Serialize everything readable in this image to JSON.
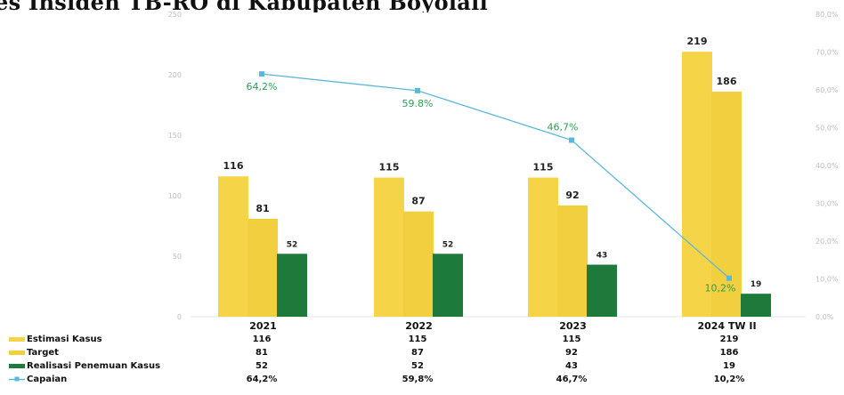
{
  "banner_text": "es Insiden TB-RO di Kabupaten Boyolali",
  "chart_data": {
    "type": "bar",
    "categories": [
      "2021",
      "2022",
      "2023",
      "2024 TW II"
    ],
    "series": [
      {
        "name": "Estimasi Kasus",
        "kind": "bar",
        "axis": "left",
        "values": [
          116,
          115,
          115,
          219
        ]
      },
      {
        "name": "Target",
        "kind": "bar",
        "axis": "left",
        "values": [
          81,
          87,
          92,
          186
        ]
      },
      {
        "name": "Realisasi Penemuan Kasus",
        "kind": "bar",
        "axis": "left",
        "values": [
          52,
          52,
          43,
          19
        ]
      },
      {
        "name": "Capaian",
        "kind": "line",
        "axis": "right",
        "values": [
          64.2,
          59.8,
          46.7,
          10.2
        ]
      }
    ],
    "left_axis": {
      "min": 0,
      "max": 250,
      "ticks": [
        "0",
        "50",
        "100",
        "150",
        "200",
        "250"
      ]
    },
    "right_axis": {
      "min": 0,
      "max": 80,
      "ticks": [
        "0,0%",
        "10,0%",
        "20,0%",
        "30,0%",
        "40,0%",
        "50,0%",
        "60,0%",
        "70,0%",
        "80,0%"
      ]
    },
    "bar_labels": [
      [
        "116",
        "81",
        "52"
      ],
      [
        "115",
        "87",
        "52"
      ],
      [
        "115",
        "92",
        "43"
      ],
      [
        "219",
        "186",
        "19"
      ]
    ],
    "point_labels": [
      "64,2%",
      "59.8%",
      "46,7%",
      "10,2%"
    ],
    "table": {
      "rows": [
        {
          "label": "Estimasi Kasus",
          "values": [
            "116",
            "115",
            "115",
            "219"
          ]
        },
        {
          "label": "Target",
          "values": [
            "81",
            "87",
            "92",
            "186"
          ]
        },
        {
          "label": "Realisasi Penemuan Kasus",
          "values": [
            "52",
            "52",
            "43",
            "19"
          ]
        },
        {
          "label": "Capaian",
          "values": [
            "64,2%",
            "59,8%",
            "46,7%",
            "10,2%"
          ]
        }
      ]
    },
    "colors": {
      "estimasi": "#F5D547",
      "target": "#F2CF3F",
      "realisasi": "#1E7A3A",
      "capaian": "#5BB8D8",
      "pct_label": "#2E9E56"
    },
    "grid": false,
    "legend": "bottom-left data table"
  }
}
